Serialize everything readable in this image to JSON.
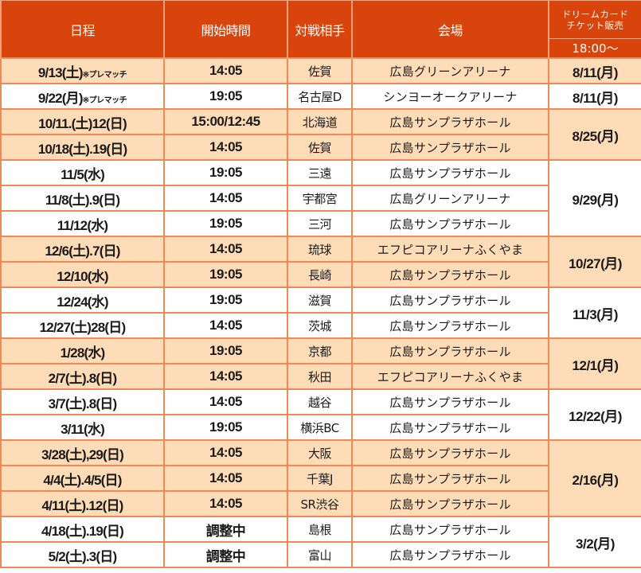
{
  "header": {
    "date": "日程",
    "start_time": "開始時間",
    "opponent": "対戦相手",
    "venue": "会場",
    "ticket_sale_line1": "ドリームカード",
    "ticket_sale_line2": "チケット販売",
    "ticket_sale_time": "18:00～"
  },
  "colors": {
    "header_bg": "#d8440b",
    "header_text": "#ffffff",
    "row_peach": "#fedcb8",
    "row_white": "#ffffff",
    "border": "#ef8a55"
  },
  "rows": [
    {
      "date": "9/13(土)",
      "note": "※プレマッチ",
      "time": "14:05",
      "opponent": "佐賀",
      "venue": "広島グリーンアリーナ"
    },
    {
      "date": "9/22(月)",
      "note": "※プレマッチ",
      "time": "19:05",
      "opponent": "名古屋D",
      "venue": "シンヨーオークアリーナ"
    },
    {
      "date": "10/11.(土)12(日)",
      "time": "15:00/12:45",
      "opponent": "北海道",
      "venue": "広島サンプラザホール"
    },
    {
      "date": "10/18(土).19(日)",
      "time": "14:05",
      "opponent": "佐賀",
      "venue": "広島サンプラザホール"
    },
    {
      "date": "11/5(水)",
      "time": "19:05",
      "opponent": "三遠",
      "venue": "広島サンプラザホール"
    },
    {
      "date": "11/8(土).9(日)",
      "time": "14:05",
      "opponent": "宇都宮",
      "venue": "広島グリーンアリーナ"
    },
    {
      "date": "11/12(水)",
      "time": "19:05",
      "opponent": "三河",
      "venue": "広島サンプラザホール"
    },
    {
      "date": "12/6(土).7(日)",
      "time": "14:05",
      "opponent": "琉球",
      "venue": "エフピコアリーナふくやま"
    },
    {
      "date": "12/10(水)",
      "time": "19:05",
      "opponent": "長崎",
      "venue": "広島サンプラザホール"
    },
    {
      "date": "12/24(水)",
      "time": "19:05",
      "opponent": "滋賀",
      "venue": "広島サンプラザホール"
    },
    {
      "date": "12/27(土)28(日)",
      "time": "14:05",
      "opponent": "茨城",
      "venue": "広島サンプラザホール"
    },
    {
      "date": "1/28(水)",
      "time": "19:05",
      "opponent": "京都",
      "venue": "広島サンプラザホール"
    },
    {
      "date": "2/7(土).8(日)",
      "time": "14:05",
      "opponent": "秋田",
      "venue": "エフピコアリーナふくやま"
    },
    {
      "date": "3/7(土).8(日)",
      "time": "14:05",
      "opponent": "越谷",
      "venue": "広島サンプラザホール"
    },
    {
      "date": "3/11(水)",
      "time": "19:05",
      "opponent": "横浜BC",
      "venue": "広島サンプラザホール"
    },
    {
      "date": "3/28(土),29(日)",
      "time": "14:05",
      "opponent": "大阪",
      "venue": "広島サンプラザホール"
    },
    {
      "date": "4/4(土).4/5(日)",
      "time": "14:05",
      "opponent": "千葉J",
      "venue": "広島サンプラザホール"
    },
    {
      "date": "4/11(土).12(日)",
      "time": "14:05",
      "opponent": "SR渋谷",
      "venue": "広島サンプラザホール"
    },
    {
      "date": "4/18(土).19(日)",
      "time": "調整中",
      "opponent": "島根",
      "venue": "広島サンプラザホール"
    },
    {
      "date": "5/2(土).3(日)",
      "time": "調整中",
      "opponent": "富山",
      "venue": "広島サンプラザホール"
    }
  ],
  "sales": [
    {
      "date": "8/11(月)"
    },
    {
      "date": "8/11(月)"
    },
    {
      "date": "8/25(月)"
    },
    {
      "date": "9/29(月)"
    },
    {
      "date": "10/27(月)"
    },
    {
      "date": "11/3(月)"
    },
    {
      "date": "12/1(月)"
    },
    {
      "date": "12/22(月)"
    },
    {
      "date": "2/16(月)"
    },
    {
      "date": "3/2(月)"
    }
  ]
}
